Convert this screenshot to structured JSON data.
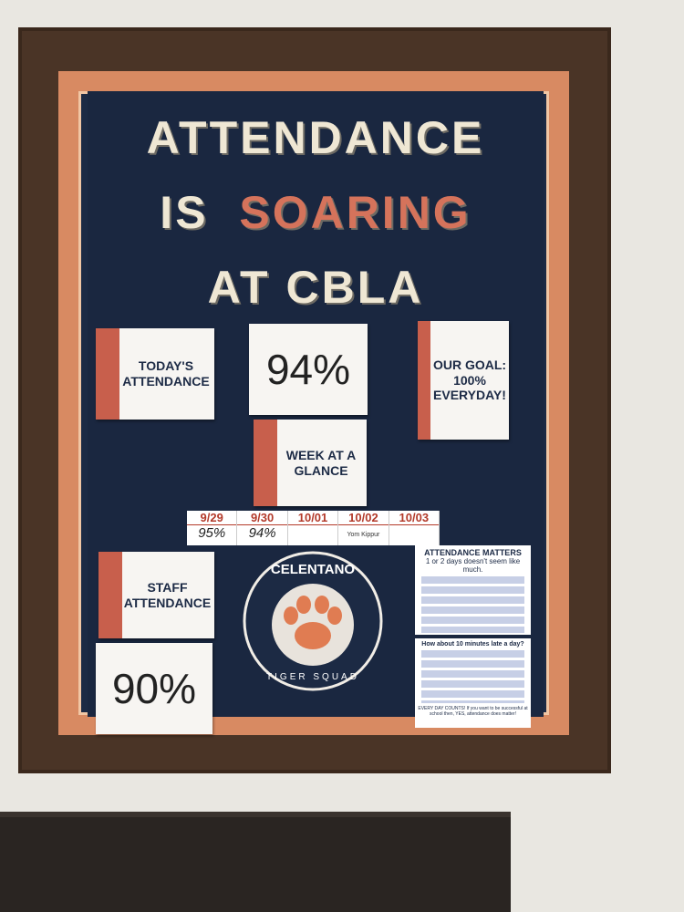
{
  "title": {
    "line1": "ATTENDANCE",
    "line2": [
      "IS",
      "SOARING"
    ],
    "line3": "AT CBLA"
  },
  "todays_attendance": {
    "label": "TODAY'S ATTENDANCE",
    "value": "94%"
  },
  "goal": "OUR GOAL: 100% EVERYDAY!",
  "week": {
    "label": "WEEK AT A GLANCE",
    "days": [
      {
        "date": "9/29",
        "value": "95%"
      },
      {
        "date": "9/30",
        "value": "94%"
      },
      {
        "date": "10/01"
      },
      {
        "date": "10/02",
        "note": "Yom Kippur"
      },
      {
        "date": "10/03"
      }
    ]
  },
  "staff_attendance": {
    "label": "STAFF ATTENDANCE",
    "value": "90%"
  },
  "logo": {
    "name": "CELENTANO",
    "subtitle": "TIGER SQUAD"
  },
  "posters": [
    {
      "title": "ATTENDANCE MATTERS",
      "subtitle": "1 or 2 days doesn't seem like much."
    },
    {
      "title": "How about 10 minutes late a day?",
      "footer": "EVERY DAY COUNTS! If you want to be successful at school then, YES, attendance does matter!"
    }
  ]
}
